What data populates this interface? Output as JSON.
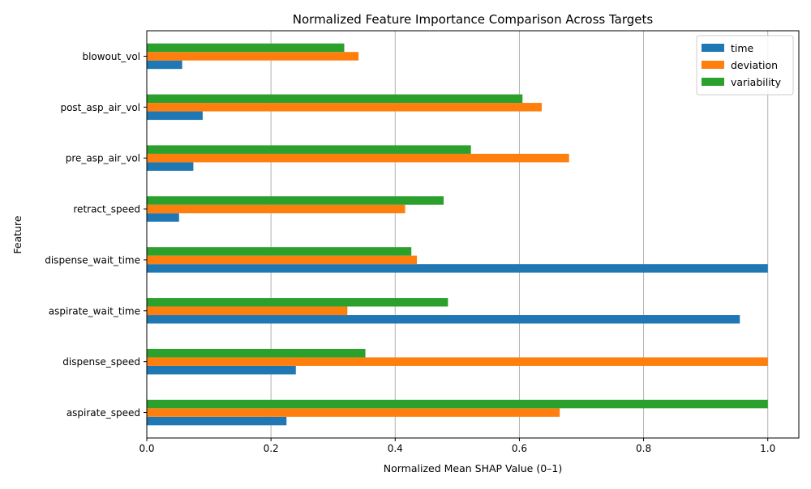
{
  "chart_data": {
    "type": "bar",
    "orientation": "horizontal",
    "title": "Normalized Feature Importance Comparison Across Targets",
    "xlabel": "Normalized Mean SHAP Value (0–1)",
    "ylabel": "Feature",
    "xlim": [
      0,
      1.05
    ],
    "xticks": [
      "0.0",
      "0.2",
      "0.4",
      "0.6",
      "0.8",
      "1.0"
    ],
    "xtick_values": [
      0,
      0.2,
      0.4,
      0.6,
      0.8,
      1.0
    ],
    "grid": "vertical",
    "legend_position": "top-right",
    "categories": [
      "aspirate_speed",
      "dispense_speed",
      "aspirate_wait_time",
      "dispense_wait_time",
      "retract_speed",
      "pre_asp_air_vol",
      "post_asp_air_vol",
      "blowout_vol"
    ],
    "series": [
      {
        "name": "time",
        "color": "#1f77b4",
        "values": [
          0.225,
          0.24,
          0.955,
          1.0,
          0.052,
          0.075,
          0.09,
          0.057
        ]
      },
      {
        "name": "deviation",
        "color": "#ff7f0e",
        "values": [
          0.665,
          1.0,
          0.323,
          0.435,
          0.416,
          0.68,
          0.636,
          0.341
        ]
      },
      {
        "name": "variability",
        "color": "#2ca02c",
        "values": [
          1.0,
          0.352,
          0.485,
          0.426,
          0.478,
          0.522,
          0.605,
          0.318
        ]
      }
    ]
  }
}
